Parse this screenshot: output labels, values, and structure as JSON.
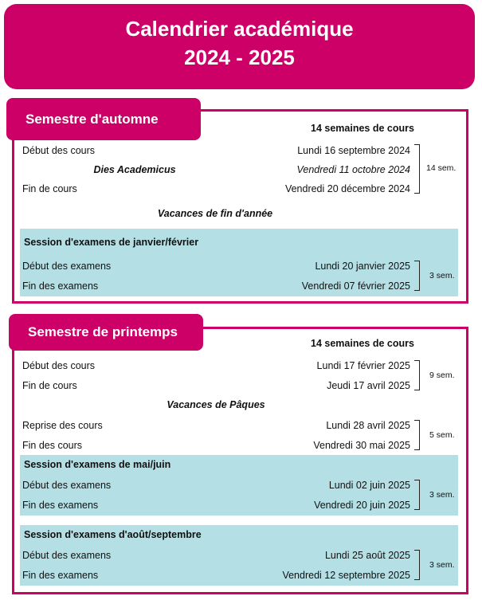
{
  "header": {
    "line1": "Calendrier académique",
    "line2": "2024 - 2025"
  },
  "colors": {
    "accent": "#cc0066",
    "session_bg": "#b4dfe5"
  },
  "autumn": {
    "title": "Semestre d'automne",
    "weeks": "14 semaines de cours",
    "rows": [
      {
        "label": "Début des cours",
        "date": "Lundi 16 septembre 2024"
      },
      {
        "label": "Dies Academicus",
        "date": "Vendredi 11 octobre 2024"
      },
      {
        "label": "Fin de cours",
        "date": "Vendredi 20 décembre 2024"
      }
    ],
    "span": "14 sem.",
    "holiday": "Vacances de fin d'année",
    "session": {
      "title": "Session d'examens de janvier/février",
      "rows": [
        {
          "label": "Début des examens",
          "date": "Lundi 20 janvier 2025"
        },
        {
          "label": "Fin des examens",
          "date": "Vendredi 07 février 2025"
        }
      ],
      "span": "3 sem."
    }
  },
  "spring": {
    "title": "Semestre de printemps",
    "weeks": "14 semaines de cours",
    "rows1": [
      {
        "label": "Début des cours",
        "date": "Lundi 17 février 2025"
      },
      {
        "label": "Fin de cours",
        "date": "Jeudi 17 avril 2025"
      }
    ],
    "span1": "9 sem.",
    "holiday": "Vacances de Pâques",
    "rows2": [
      {
        "label": "Reprise des cours",
        "date": "Lundi 28 avril 2025"
      },
      {
        "label": "Fin des cours",
        "date": "Vendredi 30 mai 2025"
      }
    ],
    "span2": "5 sem.",
    "session1": {
      "title": "Session d'examens de mai/juin",
      "rows": [
        {
          "label": "Début des examens",
          "date": "Lundi 02 juin 2025"
        },
        {
          "label": "Fin des examens",
          "date": "Vendredi 20 juin 2025"
        }
      ],
      "span": "3 sem."
    },
    "session2": {
      "title": "Session d'examens d'août/septembre",
      "rows": [
        {
          "label": "Début des examens",
          "date": "Lundi 25 août 2025"
        },
        {
          "label": "Fin des examens",
          "date": "Vendredi 12 septembre 2025"
        }
      ],
      "span": "3 sem."
    }
  }
}
